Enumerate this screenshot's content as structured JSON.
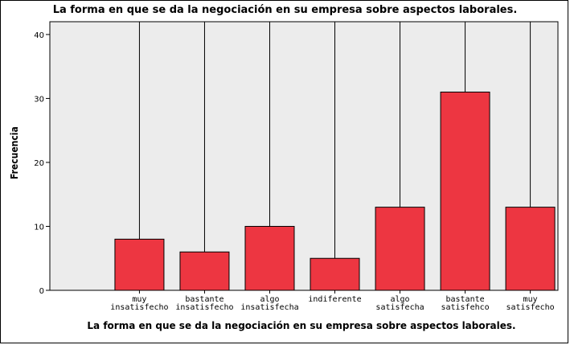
{
  "chart_data": {
    "type": "bar",
    "title": "La forma en que se da la negociación en su empresa sobre aspectos laborales.",
    "xlabel": "La forma en que se da la negociación en su empresa sobre aspectos laborales.",
    "ylabel": "Frecuencia",
    "categories": [
      [
        "muy",
        "insatisfecho"
      ],
      [
        "bastante",
        "insatisfecho"
      ],
      [
        "algo",
        "insatisfecha"
      ],
      [
        "indiferente"
      ],
      [
        "algo",
        "satisfecha"
      ],
      [
        "bastante",
        "satisfehco"
      ],
      [
        "muy",
        "satisfecho"
      ]
    ],
    "values": [
      8,
      6,
      10,
      5,
      13,
      31,
      13
    ],
    "ylim": [
      0,
      42
    ],
    "yticks": [
      0,
      10,
      20,
      30,
      40
    ],
    "bar_color": "#ed3641",
    "plot_background": "#ececec",
    "grid": false
  }
}
